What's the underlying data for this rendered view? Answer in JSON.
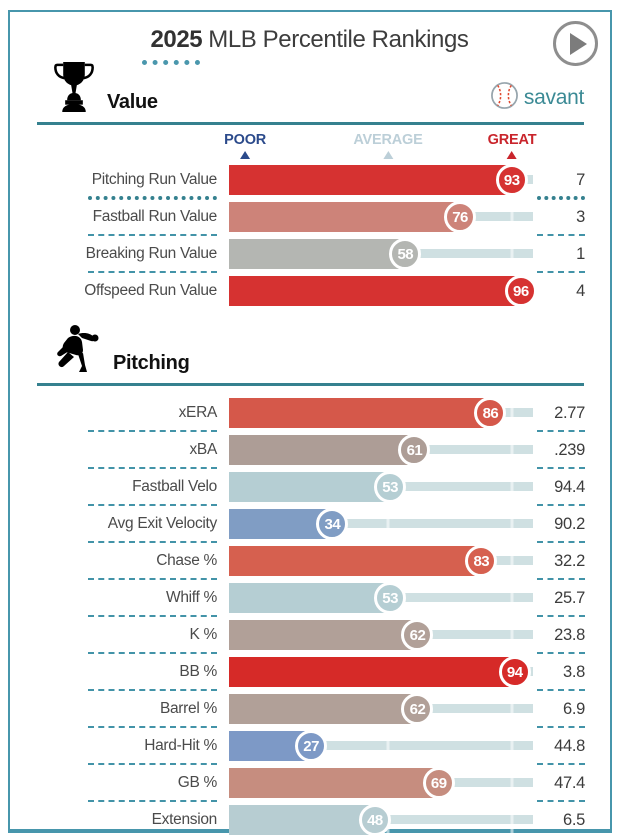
{
  "header": {
    "year": "2025",
    "title": "MLB Percentile Rankings"
  },
  "brand": {
    "name": "savant"
  },
  "colors": {
    "accent_teal": "#4293a8",
    "section_rule": "#35818f",
    "card_border": "#4796ac",
    "track": "#cfe0e2",
    "poor_blue": "#2b4a8b",
    "average_gray": "#bccfd8",
    "great_red": "#c9252c"
  },
  "icons": {
    "play": "play-icon",
    "trophy": "trophy-icon",
    "pitcher": "pitcher-icon",
    "baseball": "baseball-icon"
  },
  "chart_data": {
    "type": "bar",
    "title": "2025 MLB Percentile Rankings",
    "xlim": [
      0,
      100
    ],
    "scale_markers": [
      {
        "label": "POOR",
        "pct": 5.3,
        "color": "#2b4a8b"
      },
      {
        "label": "AVERAGE",
        "pct": 52.3,
        "color": "#bccfd8"
      },
      {
        "label": "GREAT",
        "pct": 93.1,
        "color": "#c9252c"
      }
    ],
    "sections": [
      {
        "title": "Value",
        "icon": "trophy-icon",
        "rows": [
          {
            "label": "Pitching Run Value",
            "percentile": 93,
            "value": "7",
            "color": "#d63231",
            "highlighted": true
          },
          {
            "label": "Fastball Run Value",
            "percentile": 76,
            "value": "3",
            "color": "#cd8379"
          },
          {
            "label": "Breaking Run Value",
            "percentile": 58,
            "value": "1",
            "color": "#b4b6b2"
          },
          {
            "label": "Offspeed Run Value",
            "percentile": 96,
            "value": "4",
            "color": "#d63231"
          }
        ]
      },
      {
        "title": "Pitching",
        "icon": "pitcher-icon",
        "rows": [
          {
            "label": "xERA",
            "percentile": 86,
            "value": "2.77",
            "color": "#d5584a"
          },
          {
            "label": "xBA",
            "percentile": 61,
            "value": ".239",
            "color": "#ad9d96"
          },
          {
            "label": "Fastball Velo",
            "percentile": 53,
            "value": "94.4",
            "color": "#b5ced3"
          },
          {
            "label": "Avg Exit Velocity",
            "percentile": 34,
            "value": "90.2",
            "color": "#809dc4"
          },
          {
            "label": "Chase %",
            "percentile": 83,
            "value": "32.2",
            "color": "#d6604f"
          },
          {
            "label": "Whiff %",
            "percentile": 53,
            "value": "25.7",
            "color": "#b5ced3"
          },
          {
            "label": "K %",
            "percentile": 62,
            "value": "23.8",
            "color": "#b1a098"
          },
          {
            "label": "BB %",
            "percentile": 94,
            "value": "3.8",
            "color": "#d62a28"
          },
          {
            "label": "Barrel %",
            "percentile": 62,
            "value": "6.9",
            "color": "#b1a098"
          },
          {
            "label": "Hard-Hit %",
            "percentile": 27,
            "value": "44.8",
            "color": "#7d99c6"
          },
          {
            "label": "GB %",
            "percentile": 69,
            "value": "47.4",
            "color": "#c68d7f"
          },
          {
            "label": "Extension",
            "percentile": 48,
            "value": "6.5",
            "color": "#b7cdd2"
          }
        ]
      }
    ]
  }
}
